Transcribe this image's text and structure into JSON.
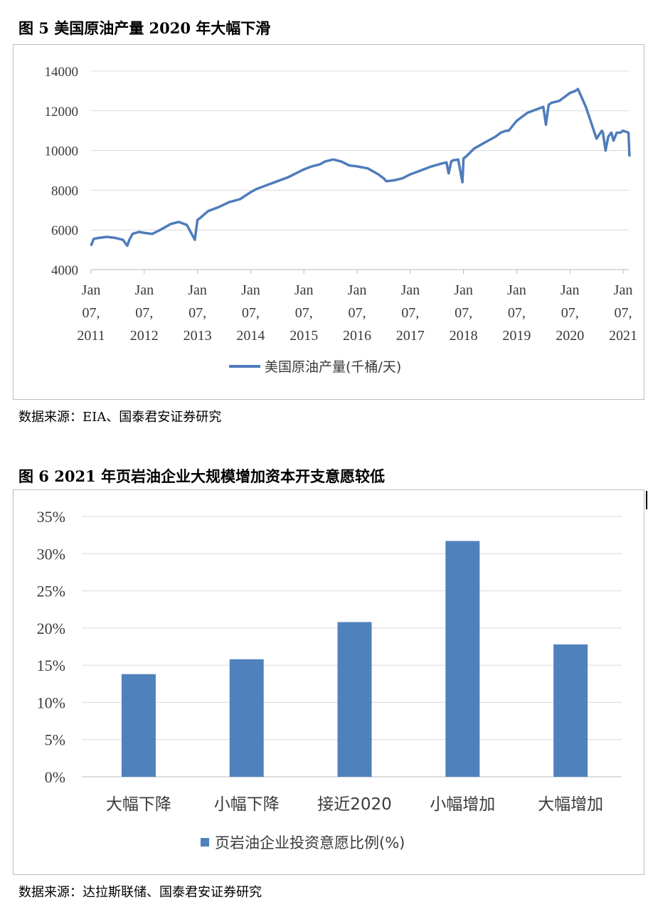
{
  "figure1": {
    "title": "图 5 美国原油产量 2020 年大幅下滑",
    "source": "数据来源：EIA、国泰君安证券研究",
    "legend": "美国原油产量(千桶/天)",
    "color": "#4f7cba"
  },
  "figure2": {
    "title": "图 6 2021 年页岩油企业大规模增加资本开支意愿较低",
    "source": "数据来源：达拉斯联储、国泰君安证券研究",
    "legend": "页岩油企业投资意愿比例(%)",
    "color": "#4f81bd"
  },
  "chart_data": [
    {
      "type": "line",
      "title": "",
      "xlabel": "",
      "ylabel": "",
      "ylim": [
        4000,
        14000
      ],
      "y_ticks": [
        "4000",
        "6000",
        "8000",
        "10000",
        "12000",
        "14000"
      ],
      "x_tick_labels": [
        [
          "Jan",
          "07,",
          "2011"
        ],
        [
          "Jan",
          "07,",
          "2012"
        ],
        [
          "Jan",
          "07,",
          "2013"
        ],
        [
          "Jan",
          "07,",
          "2014"
        ],
        [
          "Jan",
          "07,",
          "2015"
        ],
        [
          "Jan",
          "07,",
          "2016"
        ],
        [
          "Jan",
          "07,",
          "2017"
        ],
        [
          "Jan",
          "07,",
          "2018"
        ],
        [
          "Jan",
          "07,",
          "2019"
        ],
        [
          "Jan",
          "07,",
          "2020"
        ],
        [
          "Jan",
          "07,",
          "2021"
        ]
      ],
      "grid": true,
      "legend_position": "bottom",
      "series": [
        {
          "name": "美国原油产量(千桶/天)",
          "x": [
            2011.0,
            2011.05,
            2011.15,
            2011.3,
            2011.45,
            2011.6,
            2011.68,
            2011.72,
            2011.78,
            2011.9,
            2012.0,
            2012.15,
            2012.3,
            2012.5,
            2012.65,
            2012.8,
            2012.95,
            2013.0,
            2013.05,
            2013.2,
            2013.4,
            2013.6,
            2013.8,
            2014.0,
            2014.1,
            2014.3,
            2014.5,
            2014.7,
            2014.85,
            2015.0,
            2015.15,
            2015.3,
            2015.4,
            2015.55,
            2015.7,
            2015.85,
            2016.0,
            2016.2,
            2016.4,
            2016.5,
            2016.55,
            2016.7,
            2016.85,
            2017.0,
            2017.2,
            2017.4,
            2017.6,
            2017.68,
            2017.72,
            2017.77,
            2017.8,
            2017.9,
            2017.98,
            2018.0,
            2018.05,
            2018.2,
            2018.4,
            2018.6,
            2018.7,
            2018.75,
            2018.8,
            2018.85,
            2019.0,
            2019.2,
            2019.4,
            2019.5,
            2019.55,
            2019.6,
            2019.65,
            2019.8,
            2019.9,
            2020.0,
            2020.1,
            2020.15,
            2020.2,
            2020.3,
            2020.4,
            2020.5,
            2020.6,
            2020.62,
            2020.67,
            2020.72,
            2020.78,
            2020.82,
            2020.88,
            2020.95,
            2021.0,
            2021.05,
            2021.1,
            2021.12
          ],
          "values": [
            5200,
            5550,
            5600,
            5650,
            5600,
            5500,
            5200,
            5500,
            5800,
            5900,
            5850,
            5800,
            6000,
            6300,
            6400,
            6250,
            5500,
            6500,
            6600,
            6950,
            7150,
            7400,
            7550,
            7900,
            8050,
            8250,
            8450,
            8650,
            8850,
            9050,
            9200,
            9300,
            9450,
            9550,
            9450,
            9250,
            9200,
            9100,
            8800,
            8600,
            8450,
            8500,
            8600,
            8800,
            9000,
            9200,
            9350,
            9400,
            8850,
            9450,
            9500,
            9550,
            8400,
            9600,
            9700,
            10100,
            10400,
            10700,
            10900,
            10950,
            11000,
            11000,
            11500,
            11900,
            12100,
            12200,
            11300,
            12300,
            12400,
            12500,
            12700,
            12900,
            13000,
            13100,
            12800,
            12200,
            11400,
            10600,
            11000,
            10900,
            10000,
            10700,
            10900,
            10500,
            10900,
            10900,
            11000,
            10950,
            10900,
            9700
          ]
        }
      ]
    },
    {
      "type": "bar",
      "title": "",
      "xlabel": "",
      "ylabel": "",
      "ylim": [
        0,
        35
      ],
      "y_ticks": [
        "0%",
        "5%",
        "10%",
        "15%",
        "20%",
        "25%",
        "30%",
        "35%"
      ],
      "categories": [
        "大幅下降",
        "小幅下降",
        "接近2020",
        "小幅增加",
        "大幅增加"
      ],
      "grid": true,
      "legend_position": "bottom",
      "series": [
        {
          "name": "页岩油企业投资意愿比例(%)",
          "values": [
            13.8,
            15.8,
            20.8,
            31.7,
            17.8
          ]
        }
      ]
    }
  ]
}
